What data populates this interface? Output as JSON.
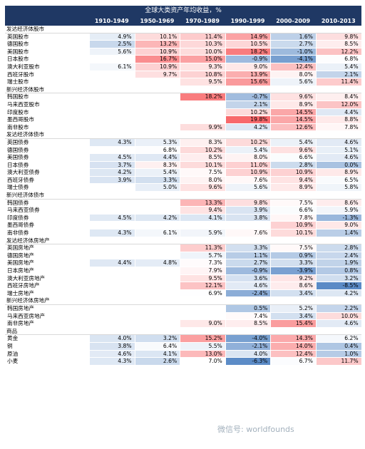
{
  "chart_data": {
    "type": "table",
    "title": "全球大类资产年均收益，%",
    "columns": [
      "",
      "1910-1949",
      "1950-1969",
      "1970-1989",
      "1990-1999",
      "2000-2009",
      "2010-2013"
    ],
    "colors": {
      "header": "#1f3864",
      "positive": "#f8696b",
      "negative": "#5a8ac6"
    },
    "rows": [
      {
        "type": "section",
        "label": "发达经济体股市"
      },
      {
        "label": "英国股市",
        "values": [
          4.9,
          10.1,
          11.4,
          14.9,
          1.6,
          9.8
        ]
      },
      {
        "label": "德国股市",
        "values": [
          2.5,
          13.2,
          10.3,
          10.5,
          2.7,
          8.5
        ]
      },
      {
        "label": "美国股市",
        "values": [
          5.6,
          10.9,
          10.0,
          18.2,
          -1.0,
          12.2
        ]
      },
      {
        "label": "日本股市",
        "values": [
          null,
          16.7,
          15.0,
          -0.9,
          -4.1,
          6.8
        ]
      },
      {
        "label": "澳大利亚股市",
        "values": [
          6.1,
          10.9,
          9.3,
          9.0,
          12.4,
          5.4
        ]
      },
      {
        "label": "西班牙股市",
        "values": [
          null,
          9.7,
          10.8,
          13.9,
          8.0,
          2.1
        ]
      },
      {
        "label": "瑞士股市",
        "values": [
          null,
          null,
          9.5,
          15.6,
          5.6,
          11.4
        ]
      },
      {
        "type": "section",
        "label": "新兴经济体股市"
      },
      {
        "label": "韩国股市",
        "values": [
          null,
          null,
          18.2,
          -0.7,
          9.6,
          8.4
        ]
      },
      {
        "label": "马来西亚股市",
        "values": [
          null,
          null,
          null,
          2.1,
          8.9,
          12.0
        ]
      },
      {
        "label": "印度股市",
        "values": [
          null,
          null,
          null,
          10.2,
          14.5,
          4.4
        ]
      },
      {
        "label": "墨西哥股市",
        "values": [
          null,
          null,
          null,
          19.8,
          14.5,
          8.8
        ]
      },
      {
        "label": "南非股市",
        "values": [
          null,
          null,
          9.9,
          4.2,
          12.6,
          7.8
        ]
      },
      {
        "type": "section",
        "label": "发达经济体债市"
      },
      {
        "label": "英国债券",
        "values": [
          4.3,
          5.3,
          8.3,
          10.2,
          5.4,
          4.6
        ]
      },
      {
        "label": "德国债券",
        "values": [
          null,
          6.8,
          10.2,
          5.4,
          9.6,
          5.1
        ]
      },
      {
        "label": "美国债券",
        "values": [
          4.5,
          4.4,
          8.5,
          8.0,
          6.6,
          4.6
        ]
      },
      {
        "label": "日本债券",
        "values": [
          3.7,
          8.3,
          10.1,
          11.0,
          2.8,
          0.0
        ]
      },
      {
        "label": "澳大利亚债券",
        "values": [
          4.2,
          5.4,
          7.5,
          10.9,
          10.9,
          8.9
        ]
      },
      {
        "label": "西班牙债券",
        "values": [
          3.9,
          3.3,
          8.0,
          7.6,
          9.4,
          6.5
        ]
      },
      {
        "label": "瑞士债券",
        "values": [
          null,
          5.0,
          9.6,
          5.6,
          8.9,
          5.8
        ]
      },
      {
        "type": "section",
        "label": "新兴经济体债市"
      },
      {
        "label": "韩国债券",
        "values": [
          null,
          null,
          13.3,
          9.8,
          7.5,
          8.6
        ]
      },
      {
        "label": "马来西亚债券",
        "values": [
          null,
          null,
          9.4,
          3.9,
          6.6,
          5.9
        ]
      },
      {
        "label": "印度债券",
        "values": [
          4.5,
          4.2,
          4.1,
          3.8,
          7.8,
          -1.3
        ]
      },
      {
        "label": "墨西哥债券",
        "values": [
          null,
          null,
          null,
          null,
          10.9,
          9.0
        ]
      },
      {
        "label": "南非债券",
        "values": [
          4.3,
          6.1,
          5.9,
          7.6,
          10.1,
          1.4
        ]
      },
      {
        "type": "section",
        "label": "发达经济体房地产"
      },
      {
        "label": "英国房地产",
        "values": [
          null,
          null,
          11.3,
          3.3,
          7.5,
          2.8
        ]
      },
      {
        "label": "德国房地产",
        "values": [
          null,
          null,
          5.7,
          1.1,
          0.9,
          2.4
        ]
      },
      {
        "label": "美国房地产",
        "values": [
          4.4,
          4.8,
          7.3,
          2.7,
          3.3,
          1.9
        ]
      },
      {
        "label": "日本房地产",
        "values": [
          null,
          null,
          7.9,
          -0.9,
          -3.9,
          0.8
        ]
      },
      {
        "label": "澳大利亚房地产",
        "values": [
          null,
          null,
          9.5,
          3.6,
          9.2,
          3.2
        ]
      },
      {
        "label": "西班牙房地产",
        "values": [
          null,
          null,
          12.1,
          4.6,
          8.6,
          -8.5
        ]
      },
      {
        "label": "瑞士房地产",
        "values": [
          null,
          null,
          6.9,
          -2.4,
          3.4,
          4.2
        ]
      },
      {
        "type": "section",
        "label": "新兴经济体房地产"
      },
      {
        "label": "韩国房地产",
        "values": [
          null,
          null,
          null,
          0.5,
          5.2,
          2.2
        ]
      },
      {
        "label": "马来西亚房地产",
        "values": [
          null,
          null,
          null,
          7.4,
          3.4,
          10.0
        ]
      },
      {
        "label": "南非房地产",
        "values": [
          null,
          null,
          9.0,
          8.5,
          15.4,
          4.6
        ]
      },
      {
        "type": "section",
        "label": "商品"
      },
      {
        "label": "黄金",
        "values": [
          4.0,
          3.2,
          15.2,
          -4.0,
          14.3,
          6.2
        ]
      },
      {
        "label": "铜",
        "values": [
          3.8,
          6.4,
          5.5,
          -2.1,
          14.0,
          0.4
        ]
      },
      {
        "label": "原油",
        "values": [
          4.6,
          4.1,
          13.0,
          4.0,
          12.4,
          1.0
        ]
      },
      {
        "label": "小麦",
        "values": [
          4.3,
          2.6,
          7.0,
          -6.3,
          6.7,
          11.7
        ]
      }
    ]
  },
  "watermark": {
    "text": "微信号: worldfounds"
  }
}
